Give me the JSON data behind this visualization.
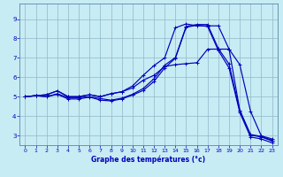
{
  "xlabel": "Graphe des températures (°c)",
  "bg_color": "#c8ecf4",
  "line_color": "#0000bb",
  "grid_color": "#90b8c8",
  "xlim": [
    -0.5,
    23.5
  ],
  "ylim": [
    2.5,
    9.8
  ],
  "xticks": [
    0,
    1,
    2,
    3,
    4,
    5,
    6,
    7,
    8,
    9,
    10,
    11,
    12,
    13,
    14,
    15,
    16,
    17,
    18,
    19,
    20,
    21,
    22,
    23
  ],
  "yticks": [
    3,
    4,
    5,
    6,
    7,
    8,
    9
  ],
  "curves": [
    [
      5.0,
      5.05,
      5.1,
      5.3,
      5.0,
      5.0,
      5.1,
      5.0,
      5.15,
      5.25,
      5.55,
      6.1,
      6.6,
      7.0,
      8.55,
      8.75,
      8.65,
      8.65,
      8.65,
      7.45,
      4.3,
      3.05,
      2.95,
      2.75
    ],
    [
      5.0,
      5.05,
      5.1,
      5.3,
      5.0,
      5.0,
      5.1,
      5.0,
      5.15,
      5.25,
      5.45,
      5.85,
      6.1,
      6.55,
      6.65,
      6.7,
      6.75,
      7.45,
      7.45,
      7.45,
      6.65,
      4.25,
      2.98,
      2.82
    ],
    [
      5.0,
      5.05,
      5.0,
      5.15,
      4.95,
      4.95,
      5.0,
      4.9,
      4.82,
      4.92,
      5.12,
      5.42,
      5.92,
      6.62,
      7.02,
      8.62,
      8.72,
      8.72,
      7.48,
      6.68,
      4.28,
      3.02,
      2.92,
      2.72
    ],
    [
      5.0,
      5.05,
      5.0,
      5.12,
      4.88,
      4.88,
      4.98,
      4.82,
      4.78,
      4.88,
      5.08,
      5.32,
      5.78,
      6.48,
      6.98,
      8.58,
      8.68,
      8.62,
      7.38,
      6.48,
      4.18,
      2.92,
      2.82,
      2.62
    ]
  ]
}
